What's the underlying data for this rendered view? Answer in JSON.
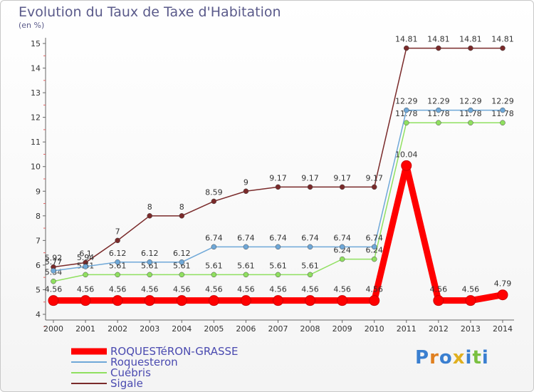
{
  "title": "Evolution du Taux de Taxe d'Habitation",
  "unit_label": "(en %)",
  "logo": "Proxiti",
  "chart_data": {
    "type": "line",
    "title": "Evolution du Taux de Taxe d'Habitation",
    "ylabel": "(en %)",
    "xlabel": "",
    "ylim": [
      4,
      15
    ],
    "yticks": [
      "4",
      "5",
      "6",
      "7",
      "8",
      "9",
      "10",
      "11",
      "12",
      "13",
      "14",
      "15"
    ],
    "x": [
      "2000",
      "2001",
      "2002",
      "2003",
      "2004",
      "2005",
      "2006",
      "2007",
      "2008",
      "2009",
      "2010",
      "2011",
      "2012",
      "2013",
      "2014"
    ],
    "grid": false,
    "legend": "bottom-left",
    "series": [
      {
        "name": "ROQUESTéRON-GRASSE",
        "color": "#ff0000",
        "values": [
          4.56,
          4.56,
          4.56,
          4.56,
          4.56,
          4.56,
          4.56,
          4.56,
          4.56,
          4.56,
          4.56,
          10.04,
          4.56,
          4.56,
          4.79
        ],
        "labels": [
          "4.56",
          "4.56",
          "4.56",
          "4.56",
          "4.56",
          "4.56",
          "4.56",
          "4.56",
          "4.56",
          "4.56",
          "4.56",
          "10.04",
          "4.56",
          "4.56",
          "4.79"
        ]
      },
      {
        "name": "Roquesteron",
        "color": "#6fa8d8",
        "values": [
          5.77,
          5.94,
          6.12,
          6.12,
          6.12,
          6.74,
          6.74,
          6.74,
          6.74,
          6.74,
          6.74,
          12.29,
          12.29,
          12.29,
          12.29
        ],
        "labels": [
          "5.77",
          "5.94",
          "6.12",
          "6.12",
          "6.12",
          "6.74",
          "6.74",
          "6.74",
          "6.74",
          "6.74",
          "6.74",
          "12.29",
          "12.29",
          "12.29",
          "12.29"
        ]
      },
      {
        "name": "Cuébris",
        "color": "#90e060",
        "values": [
          5.34,
          5.61,
          5.61,
          5.61,
          5.61,
          5.61,
          5.61,
          5.61,
          5.61,
          6.24,
          6.24,
          11.78,
          11.78,
          11.78,
          11.78
        ],
        "labels": [
          "5.34",
          "5.61",
          "5.61",
          "5.61",
          "5.61",
          "5.61",
          "5.61",
          "5.61",
          "5.61",
          "6.24",
          "6.24",
          "11.78",
          "11.78",
          "11.78",
          "11.78"
        ]
      },
      {
        "name": "Sigale",
        "color": "#7a2a2a",
        "values": [
          5.92,
          6.1,
          7,
          8,
          8,
          8.59,
          9,
          9.17,
          9.17,
          9.17,
          9.17,
          14.81,
          14.81,
          14.81,
          14.81
        ],
        "labels": [
          "5.92",
          "6.1",
          "7",
          "8",
          "8",
          "8.59",
          "9",
          "9.17",
          "9.17",
          "9.17",
          "9.17",
          "14.81",
          "14.81",
          "14.81",
          "14.81"
        ]
      }
    ]
  }
}
